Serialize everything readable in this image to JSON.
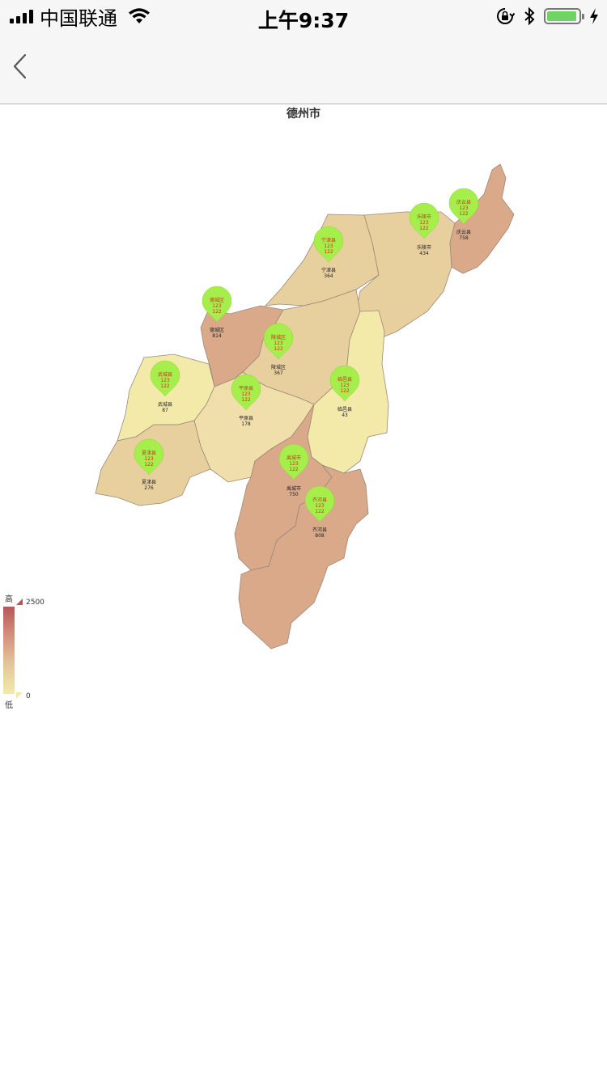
{
  "status_bar": {
    "carrier": "中国联通",
    "time": "上午9:37"
  },
  "map": {
    "title": "德州市",
    "legend": {
      "high_label": "高",
      "low_label": "低",
      "max": "2500",
      "min": "0"
    },
    "colors": {
      "low": "#f3eaaa",
      "mid": "#e8cf9e",
      "high": "#d9a98a",
      "marker": "#a6ee4b",
      "max": "#b65757"
    },
    "regions": [
      {
        "name": "宁津县",
        "value": "364",
        "marker_values": [
          "123",
          "122"
        ]
      },
      {
        "name": "乐陵市",
        "value": "434",
        "marker_values": [
          "123",
          "122"
        ]
      },
      {
        "name": "庆云县",
        "value": "758",
        "marker_values": [
          "123",
          "122"
        ]
      },
      {
        "name": "德城区",
        "value": "814",
        "marker_values": [
          "123",
          "122"
        ]
      },
      {
        "name": "陵城区",
        "value": "367",
        "marker_values": [
          "123",
          "122"
        ]
      },
      {
        "name": "武城县",
        "value": "87",
        "marker_values": [
          "123",
          "122"
        ]
      },
      {
        "name": "平原县",
        "value": "178",
        "marker_values": [
          "123",
          "122"
        ]
      },
      {
        "name": "临邑县",
        "value": "43",
        "marker_values": [
          "123",
          "122"
        ]
      },
      {
        "name": "夏津县",
        "value": "276",
        "marker_values": [
          "123",
          "122"
        ]
      },
      {
        "name": "禹城市",
        "value": "750",
        "marker_values": [
          "123",
          "122"
        ]
      },
      {
        "name": "齐河县",
        "value": "808",
        "marker_values": [
          "123",
          "122"
        ]
      }
    ]
  }
}
